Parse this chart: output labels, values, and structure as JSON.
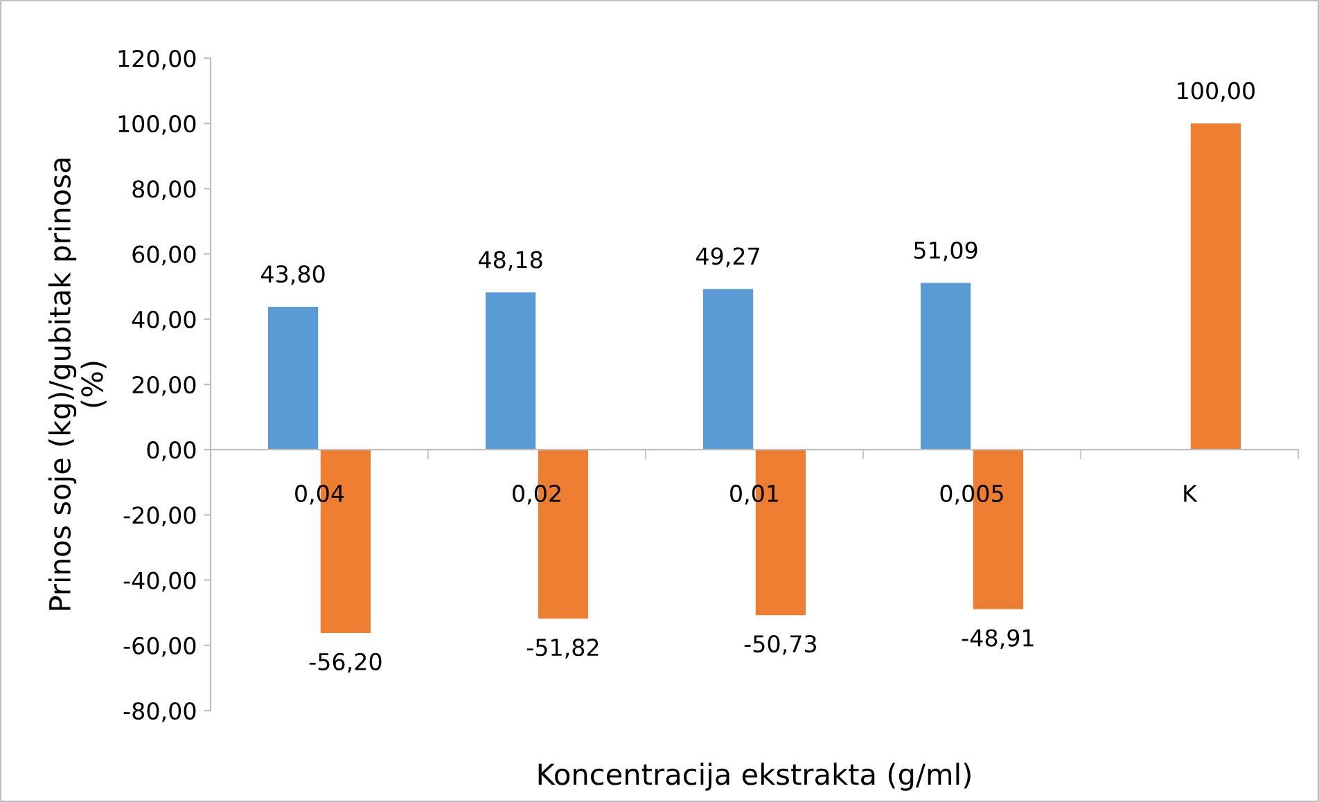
{
  "chart_data": {
    "type": "bar",
    "xlabel": "Koncentracija ekstrakta (g/ml)",
    "ylabel": "Prinos soje (kg)/gubitak prinosa\n(%)",
    "categories": [
      "0,04",
      "0,02",
      "0,01",
      "0,005",
      "K"
    ],
    "series": [
      {
        "color": "#5b9bd5",
        "values": [
          43.8,
          48.18,
          49.27,
          51.09,
          null
        ],
        "value_labels": [
          "43,80",
          "48,18",
          "49,27",
          "51,09",
          null
        ]
      },
      {
        "color": "#ed7d31",
        "values": [
          -56.2,
          -51.82,
          -50.73,
          -48.91,
          100.0
        ],
        "value_labels": [
          "-56,20",
          "-51,82",
          "-50,73",
          "-48,91",
          "100,00"
        ]
      }
    ],
    "ylim": [
      -80,
      120
    ],
    "yticks": [
      {
        "value": -80,
        "label": "-80,00"
      },
      {
        "value": -60,
        "label": "-60,00"
      },
      {
        "value": -40,
        "label": "-40,00"
      },
      {
        "value": -20,
        "label": "-20,00"
      },
      {
        "value": 0,
        "label": "0,00"
      },
      {
        "value": 20,
        "label": "20,00"
      },
      {
        "value": 40,
        "label": "40,00"
      },
      {
        "value": 60,
        "label": "60,00"
      },
      {
        "value": 80,
        "label": "80,00"
      },
      {
        "value": 100,
        "label": "100,00"
      },
      {
        "value": 120,
        "label": "120,00"
      }
    ],
    "grid": false,
    "legend": false
  }
}
